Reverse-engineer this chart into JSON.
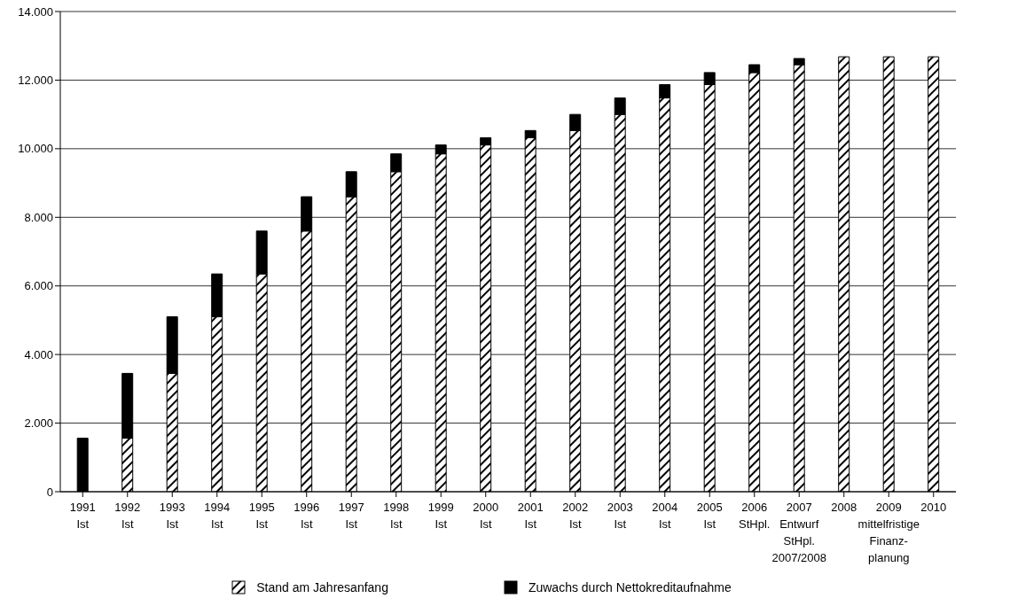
{
  "chart_data": {
    "type": "bar",
    "stacked": true,
    "categories": [
      "1991\nIst",
      "1992\nIst",
      "1993\nIst",
      "1994\nIst",
      "1995\nIst",
      "1996\nIst",
      "1997\nIst",
      "1998\nIst",
      "1999\nIst",
      "2000\nIst",
      "2001\nIst",
      "2002\nIst",
      "2003\nIst",
      "2004\nIst",
      "2005\nIst",
      "2006\nStHpl.",
      "2007\nEntwurf\nStHpl.\n2007/2008",
      "2008",
      "2009\nmittelfristige\nFinanz-\nplanung",
      "2010"
    ],
    "series": [
      {
        "name": "Stand am Jahresanfang",
        "color": "#000000",
        "values": [
          0,
          1560,
          3450,
          5100,
          6350,
          7600,
          8600,
          9330,
          9850,
          10110,
          10320,
          10530,
          11000,
          11480,
          11870,
          12220,
          12450,
          12680,
          12680,
          12680
        ]
      },
      {
        "name": "Zuwachs durch Nettokreditaufnahme",
        "color": "#000000",
        "values": [
          1560,
          1890,
          1650,
          1250,
          1250,
          1000,
          730,
          520,
          260,
          210,
          210,
          470,
          480,
          390,
          350,
          230,
          180,
          0,
          0,
          0
        ]
      }
    ],
    "ylim": [
      0,
      14000
    ],
    "yticks": [
      {
        "value": 0,
        "label": "0"
      },
      {
        "value": 2000,
        "label": "2.000"
      },
      {
        "value": 4000,
        "label": "4.000"
      },
      {
        "value": 6000,
        "label": "6.000"
      },
      {
        "value": 8000,
        "label": "8.000"
      },
      {
        "value": 10000,
        "label": "10.000"
      },
      {
        "value": 12000,
        "label": "12.000"
      },
      {
        "value": 14000,
        "label": "14.000"
      }
    ],
    "grid": "y",
    "legend": "bottom"
  }
}
